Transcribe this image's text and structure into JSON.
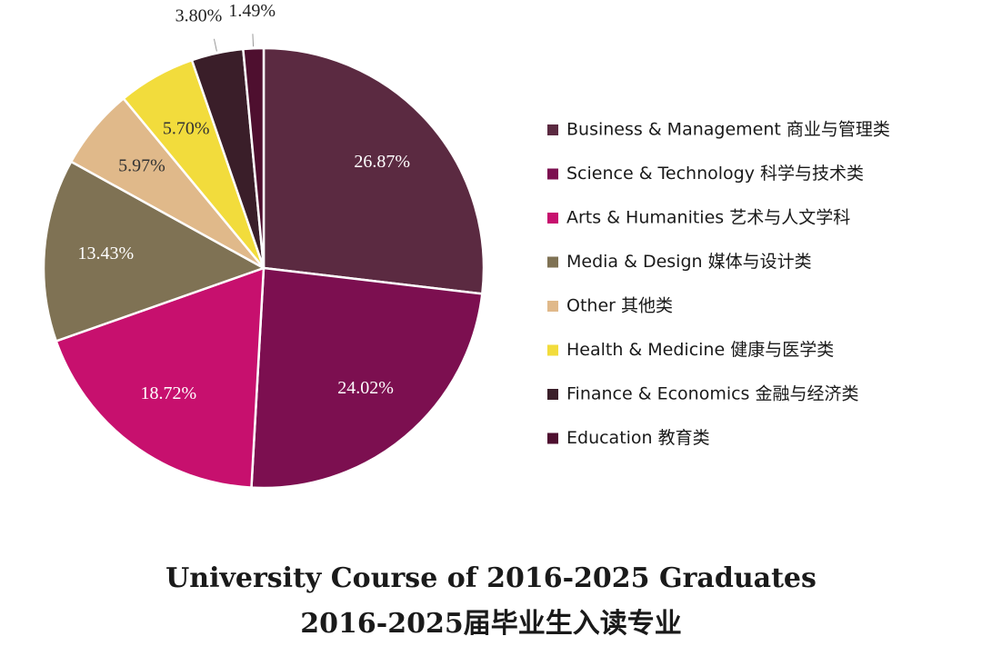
{
  "chart_data": {
    "type": "pie",
    "title": "University Course of 2016-2025 Graduates",
    "subtitle": "2016-2025届毕业生入读专业",
    "categories": [
      "Business & Management 商业与管理类",
      "Science & Technology 科学与技术类",
      "Arts & Humanities 艺术与人文学科",
      "Media & Design 媒体与设计类",
      "Other 其他类",
      "Health & Medicine 健康与医学类",
      "Finance & Economics 金融与经济类",
      "Education 教育类"
    ],
    "values": [
      26.87,
      24.02,
      18.72,
      13.43,
      5.97,
      5.7,
      3.8,
      1.49
    ],
    "value_labels": [
      "26.87%",
      "24.02%",
      "18.72%",
      "13.43%",
      "5.97%",
      "5.70%",
      "3.80%",
      "1.49%"
    ],
    "colors": [
      "#5b2a41",
      "#7c0f50",
      "#c7106e",
      "#7f7254",
      "#e0b98a",
      "#f2dc3c",
      "#3a1e29",
      "#4e0f2f"
    ],
    "legend": "right"
  }
}
